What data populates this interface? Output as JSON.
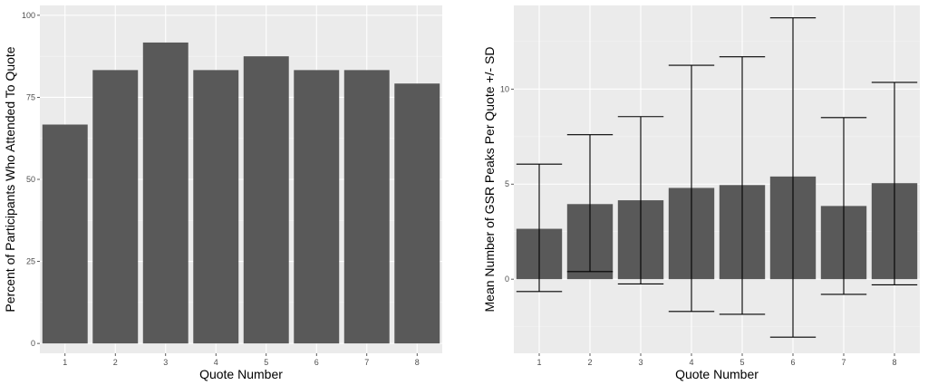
{
  "chart_data": [
    {
      "type": "bar",
      "title": "",
      "xlabel": "Quote Number",
      "ylabel": "Percent of Participants Who Attended To Quote",
      "categories": [
        "1",
        "2",
        "3",
        "4",
        "5",
        "6",
        "7",
        "8"
      ],
      "values": [
        66.7,
        83.3,
        91.7,
        83.3,
        87.5,
        83.3,
        83.3,
        79.2
      ],
      "ylim": [
        -3,
        103
      ],
      "yticks": [
        0,
        25,
        50,
        75,
        100
      ],
      "ytick_labels": [
        "0",
        "25",
        "50",
        "75",
        "100"
      ],
      "grid": true,
      "colors": {
        "bar": "#595959",
        "panel": "#ebebeb"
      }
    },
    {
      "type": "bar",
      "title": "",
      "xlabel": "Quote Number",
      "ylabel": "Mean Number of GSR Peaks Per Quote +/- SD",
      "categories": [
        "1",
        "2",
        "3",
        "4",
        "5",
        "6",
        "7",
        "8"
      ],
      "values": [
        2.65,
        3.95,
        4.15,
        4.8,
        4.95,
        5.4,
        3.85,
        5.05
      ],
      "error_low": [
        -0.65,
        0.4,
        -0.25,
        -1.7,
        -1.85,
        -3.05,
        -0.8,
        -0.3
      ],
      "error_high": [
        6.05,
        7.6,
        8.55,
        11.25,
        11.7,
        13.75,
        8.5,
        10.35
      ],
      "ylim": [
        -3.9,
        14.4
      ],
      "yticks": [
        0,
        5,
        10
      ],
      "ytick_labels": [
        "0",
        "5",
        "10"
      ],
      "grid": true,
      "colors": {
        "bar": "#595959",
        "panel": "#ebebeb",
        "error": "#000000"
      }
    }
  ]
}
